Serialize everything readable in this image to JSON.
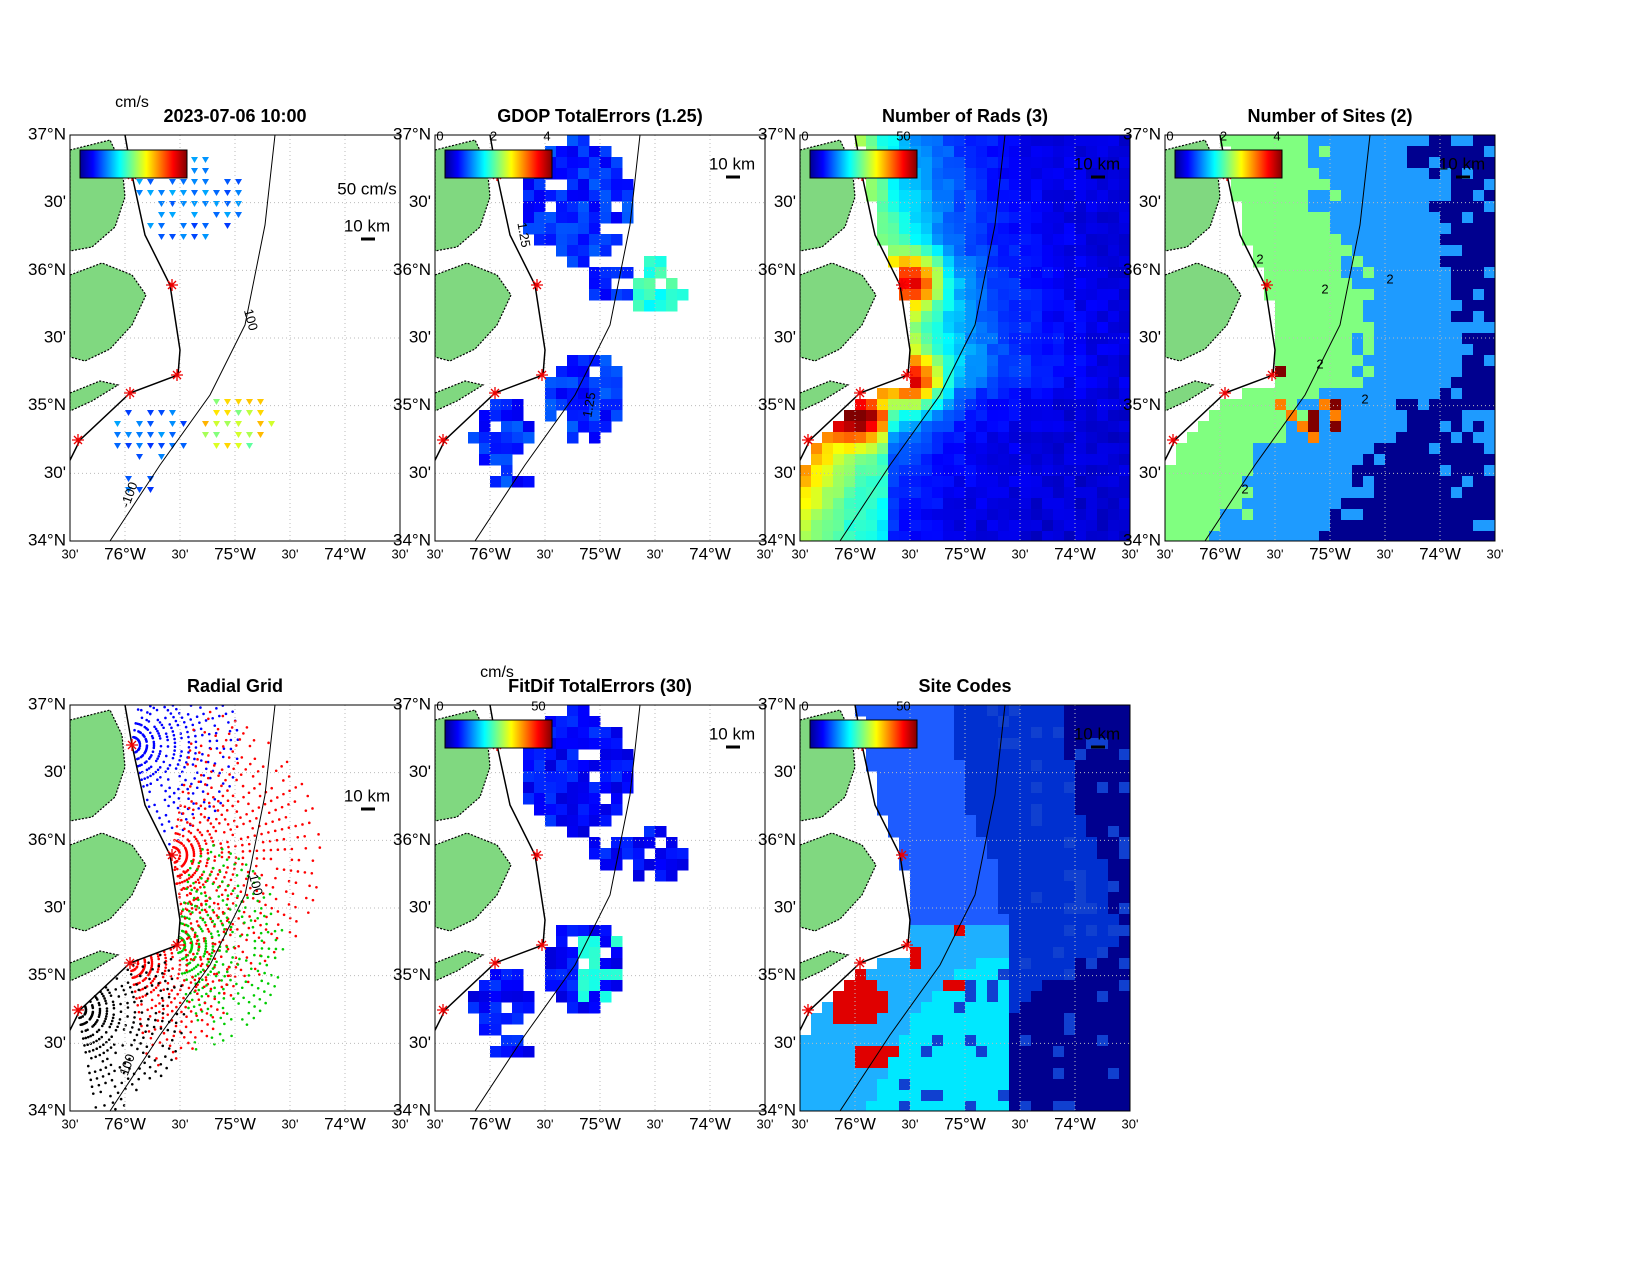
{
  "lat_labels": [
    "37°N",
    "30'",
    "36°N",
    "30'",
    "35°N",
    "30'",
    "34°N"
  ],
  "lon_labels": [
    "30'",
    "76°W",
    "30'",
    "75°W",
    "30'",
    "74°W",
    "30'"
  ],
  "panels": [
    {
      "title": "2023-07-06 10:00",
      "colorbar_label": "cm/s",
      "colorbar_ticks": [],
      "scale_label": "10 km",
      "vector_scale_label": "50 cm/s",
      "contour_labels": [
        "100",
        "-100"
      ]
    },
    {
      "title": "GDOP TotalErrors (1.25)",
      "colorbar_ticks": [
        "0",
        "2",
        "4"
      ],
      "scale_label": "10 km",
      "contour_labels": [
        "1.25",
        "1.25"
      ]
    },
    {
      "title": "Number of Rads (3)",
      "colorbar_ticks": [
        "0",
        "50"
      ],
      "scale_label": "10 km",
      "contour_labels": []
    },
    {
      "title": "Number of Sites (2)",
      "colorbar_ticks": [
        "0",
        "2",
        "4"
      ],
      "scale_label": "10 km",
      "contour_labels": [
        "2",
        "2",
        "2",
        "2",
        "2",
        "2"
      ]
    },
    {
      "title": "Radial Grid",
      "colorbar_ticks": [],
      "scale_label": "10 km",
      "contour_labels": [
        "100",
        "100"
      ]
    },
    {
      "title": "FitDif TotalErrors (30)",
      "colorbar_label": "cm/s",
      "colorbar_ticks": [
        "0",
        "50"
      ],
      "scale_label": "10 km",
      "contour_labels": []
    },
    {
      "title": "Site Codes",
      "colorbar_ticks": [
        "0",
        "50"
      ],
      "scale_label": "10 km",
      "contour_labels": []
    }
  ]
}
